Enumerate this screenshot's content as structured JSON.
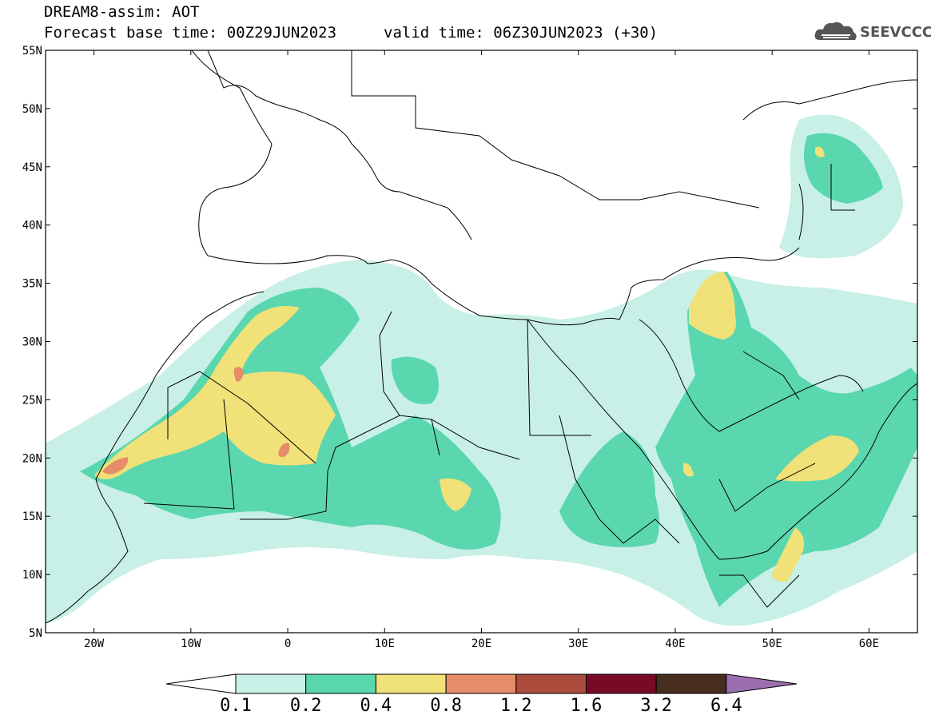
{
  "header": {
    "line1": "DREAM8-assim: AOT",
    "base_time": "Forecast base time: 00Z29JUN2023",
    "valid_time": "valid time: 06Z30JUN2023 (+30)"
  },
  "logo": {
    "text": "SEEVCCC",
    "icon": "cloud-logo-icon"
  },
  "map": {
    "lon_range": [
      -25,
      65
    ],
    "lat_range": [
      5,
      55
    ],
    "lon_ticks": [
      {
        "value": -20,
        "label": "20W"
      },
      {
        "value": -10,
        "label": "10W"
      },
      {
        "value": 0,
        "label": "0"
      },
      {
        "value": 10,
        "label": "10E"
      },
      {
        "value": 20,
        "label": "20E"
      },
      {
        "value": 30,
        "label": "30E"
      },
      {
        "value": 40,
        "label": "40E"
      },
      {
        "value": 50,
        "label": "50E"
      },
      {
        "value": 60,
        "label": "60E"
      }
    ],
    "lat_ticks": [
      {
        "value": 5,
        "label": "5N"
      },
      {
        "value": 10,
        "label": "10N"
      },
      {
        "value": 15,
        "label": "15N"
      },
      {
        "value": 20,
        "label": "20N"
      },
      {
        "value": 25,
        "label": "25N"
      },
      {
        "value": 30,
        "label": "30N"
      },
      {
        "value": 35,
        "label": "35N"
      },
      {
        "value": 40,
        "label": "40N"
      },
      {
        "value": 45,
        "label": "45N"
      },
      {
        "value": 50,
        "label": "50N"
      },
      {
        "value": 55,
        "label": "55N"
      }
    ]
  },
  "colorbar": {
    "levels": [
      "0.1",
      "0.2",
      "0.4",
      "0.8",
      "1.2",
      "1.6",
      "3.2",
      "6.4"
    ],
    "colors": [
      "#ffffff",
      "#c8f0e6",
      "#5ad7af",
      "#f0e178",
      "#e68c69",
      "#aa4b3c",
      "#780a28",
      "#462d1e",
      "#9b6eaf"
    ]
  }
}
